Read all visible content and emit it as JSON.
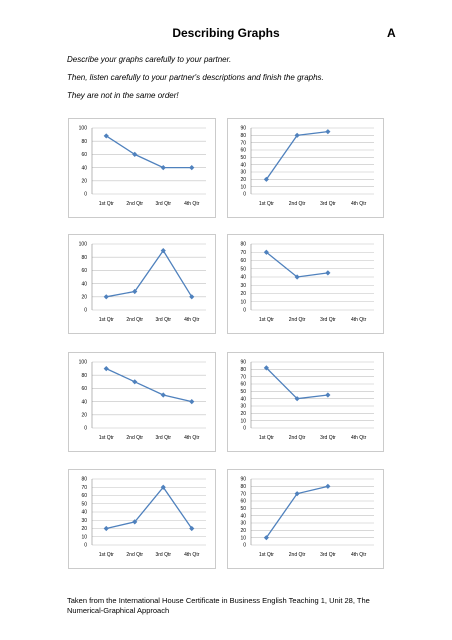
{
  "page": {
    "title": "Describing Graphs",
    "version_letter": "A",
    "instructions": [
      "Describe your graphs carefully to your partner.",
      "Then, listen carefully to your partner's descriptions and finish the graphs.",
      "They are not in the same order!"
    ],
    "footer": [
      "Taken from the International House Certificate in Business English Teaching 1, Unit 28, The",
      "Numerical-Graphical Approach"
    ]
  },
  "colors": {
    "line": "#4f81bd",
    "grid": "#c0c0c0",
    "frame": "#bfbfbf"
  },
  "chart_data": [
    {
      "type": "line",
      "categories": [
        "1st Qtr",
        "2nd Qtr",
        "3rd Qtr",
        "4th Qtr"
      ],
      "values": [
        88,
        60,
        40,
        40
      ],
      "ylim": [
        0,
        100
      ],
      "yticks": [
        0,
        20,
        40,
        60,
        80,
        100
      ],
      "grid": true
    },
    {
      "type": "line",
      "categories": [
        "1st Qtr",
        "2nd Qtr",
        "3rd Qtr",
        "4th Qtr"
      ],
      "values": [
        20,
        80,
        85,
        null
      ],
      "ylim": [
        0,
        90
      ],
      "yticks": [
        0,
        10,
        20,
        30,
        40,
        50,
        60,
        70,
        80,
        90
      ],
      "grid": true
    },
    {
      "type": "line",
      "categories": [
        "1st Qtr",
        "2nd Qtr",
        "3rd Qtr",
        "4th Qtr"
      ],
      "values": [
        20,
        28,
        90,
        20
      ],
      "ylim": [
        0,
        100
      ],
      "yticks": [
        0,
        20,
        40,
        60,
        80,
        100
      ],
      "grid": true
    },
    {
      "type": "line",
      "categories": [
        "1st Qtr",
        "2nd Qtr",
        "3rd Qtr",
        "4th Qtr"
      ],
      "values": [
        70,
        40,
        45,
        null
      ],
      "ylim": [
        0,
        80
      ],
      "yticks": [
        0,
        10,
        20,
        30,
        40,
        50,
        60,
        70,
        80
      ],
      "grid": true
    },
    {
      "type": "line",
      "categories": [
        "1st Qtr",
        "2nd Qtr",
        "3rd Qtr",
        "4th Qtr"
      ],
      "values": [
        90,
        70,
        50,
        40
      ],
      "ylim": [
        0,
        100
      ],
      "yticks": [
        0,
        20,
        40,
        60,
        80,
        100
      ],
      "grid": true
    },
    {
      "type": "line",
      "categories": [
        "1st Qtr",
        "2nd Qtr",
        "3rd Qtr",
        "4th Qtr"
      ],
      "values": [
        82,
        40,
        45,
        null
      ],
      "ylim": [
        0,
        90
      ],
      "yticks": [
        0,
        10,
        20,
        30,
        40,
        50,
        60,
        70,
        80,
        90
      ],
      "grid": true
    },
    {
      "type": "line",
      "categories": [
        "1st Qtr",
        "2nd Qtr",
        "3rd Qtr",
        "4th Qtr"
      ],
      "values": [
        20,
        28,
        70,
        20
      ],
      "ylim": [
        0,
        80
      ],
      "yticks": [
        0,
        10,
        20,
        30,
        40,
        50,
        60,
        70,
        80
      ],
      "grid": true
    },
    {
      "type": "line",
      "categories": [
        "1st Qtr",
        "2nd Qtr",
        "3rd Qtr",
        "4th Qtr"
      ],
      "values": [
        10,
        70,
        80,
        null
      ],
      "ylim": [
        0,
        90
      ],
      "yticks": [
        0,
        10,
        20,
        30,
        40,
        50,
        60,
        70,
        80,
        90
      ],
      "grid": true
    }
  ]
}
